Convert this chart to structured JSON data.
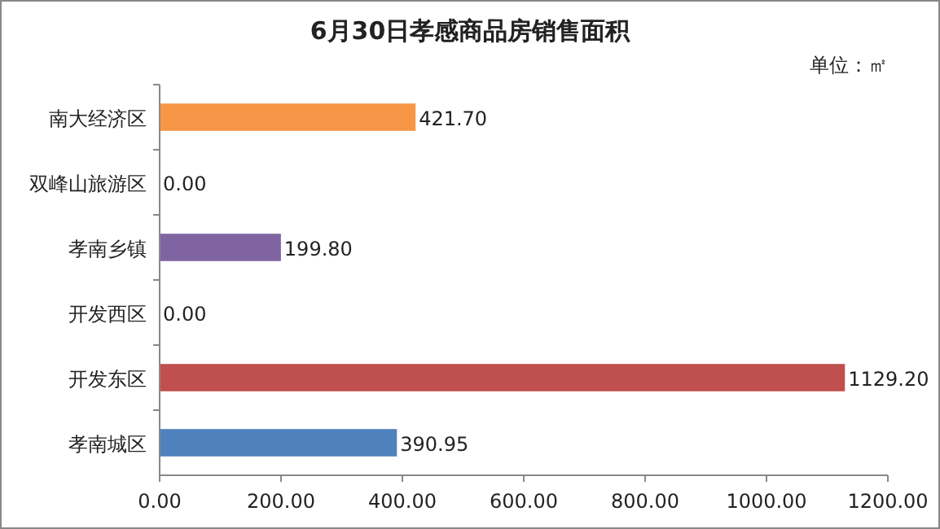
{
  "chart_data": {
    "type": "bar",
    "orientation": "horizontal",
    "title": "6月30日孝感商品房销售面积",
    "annotations": [
      "单位：㎡"
    ],
    "categories": [
      "南大经济区",
      "双峰山旅游区",
      "孝南乡镇",
      "开发西区",
      "开发东区",
      "孝南城区"
    ],
    "values": [
      421.7,
      0,
      199.8,
      0,
      1129.2,
      390.95
    ],
    "colors": [
      "#f79646",
      "#4bacc6",
      "#8064a2",
      "#9bbb59",
      "#c0504d",
      "#4f81bd"
    ],
    "value_labels": [
      "421.70",
      "0.00",
      "199.80",
      "0.00",
      "1129.20",
      "390.95"
    ],
    "xlim": [
      0,
      1200
    ],
    "xticks": [
      {
        "value": 0,
        "label": "0.00"
      },
      {
        "value": 200,
        "label": "200.00"
      },
      {
        "value": 400,
        "label": "400.00"
      },
      {
        "value": 600,
        "label": "600.00"
      },
      {
        "value": 800,
        "label": "800.00"
      },
      {
        "value": 1000,
        "label": "1000.00"
      },
      {
        "value": 1200,
        "label": "1200.00"
      }
    ],
    "grid": false
  }
}
